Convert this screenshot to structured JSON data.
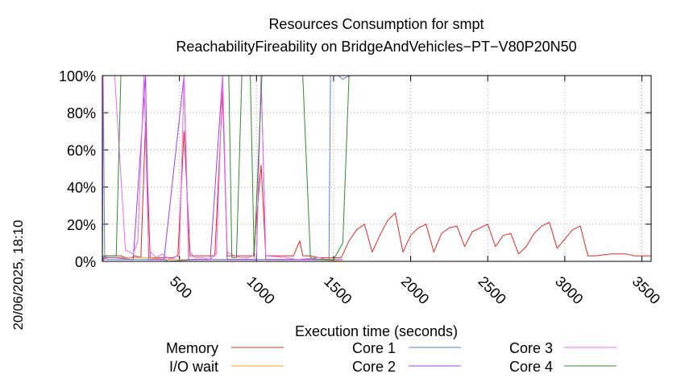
{
  "chart_data": {
    "type": "line",
    "title": "Resources Consumption for smpt",
    "subtitle": "ReachabilityFireability on BridgeAndVehicles−PT−V80P20N50",
    "xlabel": "Execution time (seconds)",
    "ylabel": "",
    "side_label": "20/06/2025, 18:10",
    "xlim": [
      0,
      3560
    ],
    "ylim": [
      0,
      100
    ],
    "x_ticks": [
      500,
      1000,
      1500,
      2000,
      2500,
      3000,
      3500
    ],
    "x_tick_labels": [
      "500",
      "1000",
      "1500",
      "2000",
      "2500",
      "3000",
      "3500"
    ],
    "y_ticks": [
      0,
      20,
      40,
      60,
      80,
      100
    ],
    "y_tick_labels": [
      "0%",
      "20%",
      "40%",
      "60%",
      "80%",
      "100%"
    ],
    "grid": true,
    "legend_position": "bottom",
    "series": [
      {
        "name": "Memory",
        "color": "#e8251f",
        "points": [
          [
            0,
            0
          ],
          [
            8,
            2
          ],
          [
            30,
            3
          ],
          [
            50,
            3
          ],
          [
            120,
            3
          ],
          [
            150,
            2
          ],
          [
            170,
            2
          ],
          [
            190,
            2
          ],
          [
            210,
            3
          ],
          [
            250,
            2
          ],
          [
            280,
            75
          ],
          [
            310,
            2
          ],
          [
            340,
            2
          ],
          [
            370,
            2
          ],
          [
            400,
            2
          ],
          [
            430,
            2
          ],
          [
            460,
            2
          ],
          [
            490,
            3
          ],
          [
            530,
            70
          ],
          [
            570,
            3
          ],
          [
            600,
            3
          ],
          [
            650,
            3
          ],
          [
            700,
            3
          ],
          [
            730,
            3
          ],
          [
            780,
            91
          ],
          [
            810,
            3
          ],
          [
            850,
            3
          ],
          [
            880,
            3
          ],
          [
            930,
            3
          ],
          [
            980,
            3
          ],
          [
            1030,
            52
          ],
          [
            1060,
            3
          ],
          [
            1100,
            3
          ],
          [
            1150,
            3
          ],
          [
            1180,
            3
          ],
          [
            1240,
            3
          ],
          [
            1280,
            11
          ],
          [
            1300,
            3
          ],
          [
            1350,
            3
          ],
          [
            1400,
            2
          ],
          [
            1450,
            2
          ],
          [
            1490,
            2
          ],
          [
            1550,
            2
          ],
          [
            1600,
            11
          ],
          [
            1650,
            17
          ],
          [
            1700,
            20
          ],
          [
            1750,
            5
          ],
          [
            1800,
            14
          ],
          [
            1850,
            22
          ],
          [
            1900,
            26
          ],
          [
            1950,
            5
          ],
          [
            2000,
            14
          ],
          [
            2050,
            18
          ],
          [
            2100,
            20
          ],
          [
            2150,
            5
          ],
          [
            2200,
            15
          ],
          [
            2250,
            18
          ],
          [
            2300,
            19
          ],
          [
            2350,
            8
          ],
          [
            2400,
            16
          ],
          [
            2450,
            18
          ],
          [
            2500,
            20
          ],
          [
            2550,
            8
          ],
          [
            2600,
            14
          ],
          [
            2650,
            15
          ],
          [
            2700,
            4
          ],
          [
            2750,
            8
          ],
          [
            2800,
            15
          ],
          [
            2850,
            19
          ],
          [
            2900,
            21
          ],
          [
            2950,
            7
          ],
          [
            3000,
            12
          ],
          [
            3050,
            17
          ],
          [
            3100,
            19
          ],
          [
            3150,
            3
          ],
          [
            3200,
            3
          ],
          [
            3300,
            4
          ],
          [
            3400,
            4
          ],
          [
            3450,
            3
          ],
          [
            3500,
            3
          ],
          [
            3560,
            3
          ]
        ]
      },
      {
        "name": "I/O wait",
        "color": "#f2a213",
        "points": [
          [
            0,
            0
          ],
          [
            20,
            2
          ],
          [
            100,
            2
          ],
          [
            200,
            2
          ],
          [
            300,
            2
          ],
          [
            400,
            1
          ],
          [
            500,
            1
          ],
          [
            600,
            1
          ],
          [
            800,
            1
          ],
          [
            1000,
            1
          ],
          [
            1200,
            1
          ],
          [
            1400,
            1
          ],
          [
            1560,
            0
          ]
        ]
      },
      {
        "name": "Core 1",
        "color": "#5b7fe0",
        "points": [
          [
            0,
            0
          ],
          [
            5,
            100
          ],
          [
            15,
            2
          ],
          [
            30,
            1
          ],
          [
            100,
            1
          ],
          [
            250,
            1
          ],
          [
            400,
            1
          ],
          [
            430,
            0
          ],
          [
            600,
            1
          ],
          [
            800,
            1
          ],
          [
            1000,
            1
          ],
          [
            1200,
            1
          ],
          [
            1400,
            1
          ],
          [
            1470,
            1
          ],
          [
            1480,
            100
          ],
          [
            1530,
            100
          ],
          [
            1560,
            98
          ],
          [
            1580,
            99
          ],
          [
            1610,
            100
          ],
          [
            3560,
            100
          ]
        ]
      },
      {
        "name": "Core 2",
        "color": "#9b3fe0",
        "points": [
          [
            0,
            0
          ],
          [
            20,
            2
          ],
          [
            80,
            2
          ],
          [
            200,
            1
          ],
          [
            280,
            100
          ],
          [
            300,
            1
          ],
          [
            400,
            1
          ],
          [
            530,
            100
          ],
          [
            560,
            1
          ],
          [
            700,
            1
          ],
          [
            780,
            100
          ],
          [
            810,
            1
          ],
          [
            900,
            1
          ],
          [
            1000,
            1
          ],
          [
            1030,
            100
          ],
          [
            1060,
            1
          ],
          [
            1200,
            1
          ],
          [
            1280,
            1
          ],
          [
            1400,
            1
          ],
          [
            1500,
            1
          ],
          [
            1560,
            1
          ]
        ]
      },
      {
        "name": "Core 3",
        "color": "#ef67ef",
        "points": [
          [
            0,
            0
          ],
          [
            5,
            100
          ],
          [
            60,
            100
          ],
          [
            80,
            100
          ],
          [
            150,
            6
          ],
          [
            200,
            4
          ],
          [
            230,
            11
          ],
          [
            270,
            100
          ],
          [
            300,
            6
          ],
          [
            350,
            2
          ],
          [
            390,
            4
          ],
          [
            420,
            2
          ],
          [
            450,
            1
          ],
          [
            500,
            4
          ],
          [
            530,
            100
          ],
          [
            560,
            6
          ],
          [
            600,
            2
          ],
          [
            650,
            2
          ],
          [
            700,
            1
          ],
          [
            740,
            4
          ],
          [
            780,
            100
          ],
          [
            810,
            5
          ],
          [
            860,
            3
          ],
          [
            900,
            2
          ],
          [
            950,
            2
          ],
          [
            1000,
            4
          ],
          [
            1030,
            100
          ],
          [
            1060,
            3
          ],
          [
            1200,
            2
          ],
          [
            1260,
            1
          ],
          [
            1400,
            2
          ],
          [
            1460,
            1
          ]
        ]
      },
      {
        "name": "Core 4",
        "color": "#2f8b2f",
        "points": [
          [
            0,
            0
          ],
          [
            5,
            3
          ],
          [
            90,
            3
          ],
          [
            120,
            100
          ],
          [
            820,
            100
          ],
          [
            840,
            2
          ],
          [
            870,
            2
          ],
          [
            905,
            100
          ],
          [
            960,
            100
          ],
          [
            985,
            2
          ],
          [
            1035,
            100
          ],
          [
            1300,
            100
          ],
          [
            1350,
            2
          ],
          [
            1400,
            1
          ],
          [
            1460,
            1
          ],
          [
            1500,
            1
          ],
          [
            1560,
            10
          ],
          [
            1600,
            100
          ],
          [
            3560,
            100
          ]
        ]
      }
    ]
  }
}
